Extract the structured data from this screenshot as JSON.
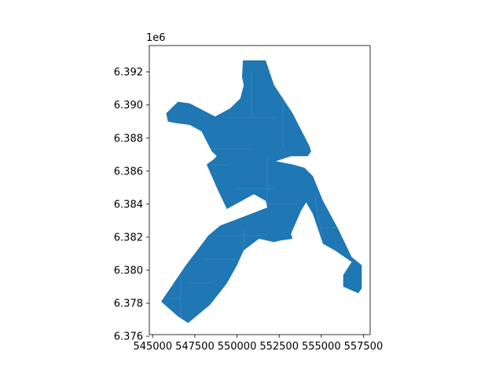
{
  "chart_data": {
    "type": "polygon-map",
    "title": "",
    "xlabel": "",
    "ylabel": "",
    "x_ticks": [
      545000,
      547500,
      550000,
      552500,
      555000,
      557500
    ],
    "x_tick_labels": [
      "545000",
      "547500",
      "550000",
      "552500",
      "555000",
      "557500"
    ],
    "y_ticks": [
      6376000,
      6378000,
      6380000,
      6382000,
      6384000,
      6386000,
      6388000,
      6390000,
      6392000
    ],
    "y_tick_labels": [
      "6.376",
      "6.378",
      "6.380",
      "6.382",
      "6.384",
      "6.386",
      "6.388",
      "6.390",
      "6.392"
    ],
    "y_offset_label": "1e6",
    "xlim": [
      544800,
      557900
    ],
    "ylim": [
      6376100,
      6393600
    ],
    "grid": false,
    "fill_color": "#1f77b4",
    "polygon": [
      [
        550350,
        6392700
      ],
      [
        551700,
        6392700
      ],
      [
        552200,
        6391200
      ],
      [
        553300,
        6389500
      ],
      [
        554300,
        6387500
      ],
      [
        554400,
        6387200
      ],
      [
        554200,
        6386900
      ],
      [
        553200,
        6386900
      ],
      [
        552300,
        6386600
      ],
      [
        553300,
        6386400
      ],
      [
        554000,
        6386200
      ],
      [
        554500,
        6385700
      ],
      [
        555100,
        6384200
      ],
      [
        556000,
        6382500
      ],
      [
        556800,
        6380800
      ],
      [
        557400,
        6380300
      ],
      [
        557400,
        6378900
      ],
      [
        557200,
        6378600
      ],
      [
        556300,
        6379000
      ],
      [
        556300,
        6379700
      ],
      [
        556800,
        6380500
      ],
      [
        555800,
        6381200
      ],
      [
        555100,
        6381600
      ],
      [
        554500,
        6383400
      ],
      [
        554100,
        6384100
      ],
      [
        553800,
        6383600
      ],
      [
        553200,
        6382200
      ],
      [
        553300,
        6381900
      ],
      [
        552600,
        6381800
      ],
      [
        552200,
        6381700
      ],
      [
        551300,
        6381900
      ],
      [
        550400,
        6381200
      ],
      [
        550000,
        6380300
      ],
      [
        549400,
        6379200
      ],
      [
        548400,
        6377900
      ],
      [
        547100,
        6376800
      ],
      [
        546500,
        6377200
      ],
      [
        545500,
        6378100
      ],
      [
        546900,
        6380200
      ],
      [
        548300,
        6382100
      ],
      [
        549000,
        6382700
      ],
      [
        550800,
        6383400
      ],
      [
        551800,
        6383800
      ],
      [
        551700,
        6384200
      ],
      [
        551000,
        6384600
      ],
      [
        549400,
        6383700
      ],
      [
        548800,
        6385000
      ],
      [
        548200,
        6386400
      ],
      [
        548600,
        6386700
      ],
      [
        548800,
        6386900
      ],
      [
        548500,
        6387200
      ],
      [
        547900,
        6388400
      ],
      [
        547200,
        6388800
      ],
      [
        546400,
        6388900
      ],
      [
        545900,
        6389000
      ],
      [
        545800,
        6389500
      ],
      [
        546500,
        6390200
      ],
      [
        547200,
        6390100
      ],
      [
        548700,
        6389300
      ],
      [
        549600,
        6389800
      ],
      [
        550200,
        6390400
      ],
      [
        550400,
        6391200
      ],
      [
        550300,
        6391700
      ]
    ]
  }
}
